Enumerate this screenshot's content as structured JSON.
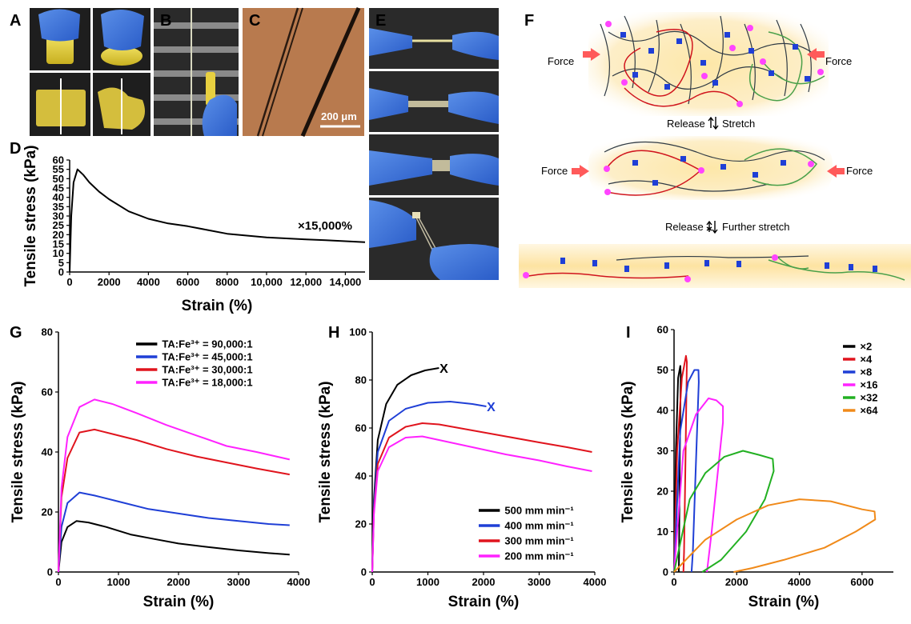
{
  "panel_letters": {
    "A": "A",
    "B": "B",
    "C": "C",
    "D": "D",
    "E": "E",
    "F": "F",
    "G": "G",
    "H": "H",
    "I": "I"
  },
  "photos": {
    "scale_bar": "200 μm"
  },
  "schematic": {
    "force": "Force",
    "release_stretch": "Release",
    "stretch": "Stretch",
    "release2": "Release",
    "further_stretch": "Further stretch",
    "colors": {
      "red_chain": "#d0141d",
      "green_chain": "#4aa04a",
      "gray_chain": "#2f3a44",
      "crosslink": "#1f3fd6",
      "node": "#ff55ff",
      "glow": "#fde8b0"
    }
  },
  "chart_data": [
    {
      "id": "D",
      "type": "line",
      "xlabel": "Strain (%)",
      "ylabel": "Tensile stress (kPa)",
      "xlim": [
        0,
        15000
      ],
      "ylim": [
        0,
        60
      ],
      "xticks": [
        0,
        2000,
        4000,
        6000,
        8000,
        10000,
        12000,
        14000
      ],
      "xtick_labels": [
        "0",
        "2000",
        "4000",
        "6000",
        "8000",
        "10,000",
        "12,000",
        "14,000"
      ],
      "yticks": [
        0,
        5,
        10,
        15,
        20,
        25,
        30,
        35,
        40,
        45,
        50,
        55,
        60
      ],
      "annotation": "×15,000%",
      "series": [
        {
          "color": "#000000",
          "points": [
            [
              0,
              0
            ],
            [
              80,
              30
            ],
            [
              200,
              48
            ],
            [
              400,
              55
            ],
            [
              700,
              52
            ],
            [
              1000,
              48
            ],
            [
              1500,
              43
            ],
            [
              2000,
              39
            ],
            [
              3000,
              32.5
            ],
            [
              4000,
              28.5
            ],
            [
              5000,
              26
            ],
            [
              6000,
              24.5
            ],
            [
              7000,
              22.5
            ],
            [
              8000,
              20.5
            ],
            [
              9000,
              19.5
            ],
            [
              10000,
              18.5
            ],
            [
              11000,
              18
            ],
            [
              12000,
              17.5
            ],
            [
              13000,
              17
            ],
            [
              14000,
              16.5
            ],
            [
              15000,
              16
            ]
          ]
        }
      ]
    },
    {
      "id": "G",
      "type": "line",
      "xlabel": "Strain (%)",
      "ylabel": "Tensile stress (kPa)",
      "xlim": [
        0,
        4000
      ],
      "ylim": [
        0,
        80
      ],
      "xticks": [
        0,
        1000,
        2000,
        3000,
        4000
      ],
      "yticks": [
        0,
        20,
        40,
        60,
        80
      ],
      "legend_position": "top-right",
      "series": [
        {
          "name": "TA:Fe³⁺ = 90,000:1",
          "color": "#000000",
          "points": [
            [
              0,
              0
            ],
            [
              50,
              10
            ],
            [
              150,
              15
            ],
            [
              300,
              17
            ],
            [
              500,
              16.5
            ],
            [
              800,
              15
            ],
            [
              1200,
              12.5
            ],
            [
              1600,
              11
            ],
            [
              2000,
              9.5
            ],
            [
              2500,
              8.3
            ],
            [
              3000,
              7.2
            ],
            [
              3500,
              6.3
            ],
            [
              3850,
              5.8
            ]
          ]
        },
        {
          "name": "TA:Fe³⁺ = 45,000:1",
          "color": "#1f3fd6",
          "points": [
            [
              0,
              0
            ],
            [
              50,
              15
            ],
            [
              150,
              23
            ],
            [
              350,
              26.5
            ],
            [
              600,
              25.5
            ],
            [
              1000,
              23.5
            ],
            [
              1500,
              21
            ],
            [
              2000,
              19.5
            ],
            [
              2500,
              18
            ],
            [
              3000,
              17
            ],
            [
              3500,
              16
            ],
            [
              3850,
              15.6
            ]
          ]
        },
        {
          "name": "TA:Fe³⁺ = 30,000:1",
          "color": "#e0141d",
          "points": [
            [
              0,
              0
            ],
            [
              50,
              25
            ],
            [
              150,
              38
            ],
            [
              350,
              46.5
            ],
            [
              600,
              47.5
            ],
            [
              900,
              46
            ],
            [
              1300,
              44
            ],
            [
              1800,
              41
            ],
            [
              2300,
              38.5
            ],
            [
              2800,
              36.5
            ],
            [
              3300,
              34.5
            ],
            [
              3850,
              32.5
            ]
          ]
        },
        {
          "name": "TA:Fe³⁺ = 18,000:1",
          "color": "#ff22ff",
          "points": [
            [
              0,
              0
            ],
            [
              50,
              28
            ],
            [
              150,
              45
            ],
            [
              350,
              55
            ],
            [
              600,
              57.5
            ],
            [
              900,
              56
            ],
            [
              1300,
              53
            ],
            [
              1800,
              49
            ],
            [
              2300,
              45.5
            ],
            [
              2800,
              42
            ],
            [
              3300,
              40
            ],
            [
              3850,
              37.5
            ]
          ]
        }
      ]
    },
    {
      "id": "H",
      "type": "line",
      "xlabel": "Strain (%)",
      "ylabel": "Tensile stress (kPa)",
      "xlim": [
        0,
        4000
      ],
      "ylim": [
        0,
        100
      ],
      "xticks": [
        0,
        1000,
        2000,
        3000,
        4000
      ],
      "yticks": [
        0,
        20,
        40,
        60,
        80,
        100
      ],
      "legend_position": "bottom-right",
      "break_marker": "X",
      "series": [
        {
          "name": "500 mm min⁻¹",
          "color": "#000000",
          "break": true,
          "points": [
            [
              0,
              0
            ],
            [
              30,
              30
            ],
            [
              100,
              55
            ],
            [
              250,
              70
            ],
            [
              450,
              78
            ],
            [
              700,
              82
            ],
            [
              950,
              84
            ],
            [
              1200,
              85
            ]
          ]
        },
        {
          "name": "400 mm min⁻¹",
          "color": "#1f3fd6",
          "break": true,
          "points": [
            [
              0,
              0
            ],
            [
              30,
              28
            ],
            [
              100,
              50
            ],
            [
              300,
              63
            ],
            [
              600,
              68
            ],
            [
              1000,
              70.5
            ],
            [
              1400,
              71
            ],
            [
              1800,
              70
            ],
            [
              2050,
              69
            ]
          ]
        },
        {
          "name": "300 mm min⁻¹",
          "color": "#e0141d",
          "break": false,
          "points": [
            [
              0,
              0
            ],
            [
              30,
              25
            ],
            [
              100,
              45
            ],
            [
              300,
              56
            ],
            [
              600,
              60.5
            ],
            [
              900,
              62
            ],
            [
              1200,
              61.5
            ],
            [
              1800,
              59
            ],
            [
              2400,
              56.5
            ],
            [
              3000,
              54
            ],
            [
              3500,
              52
            ],
            [
              3950,
              50
            ]
          ]
        },
        {
          "name": "200 mm min⁻¹",
          "color": "#ff22ff",
          "break": false,
          "points": [
            [
              0,
              0
            ],
            [
              30,
              24
            ],
            [
              100,
              42
            ],
            [
              300,
              52
            ],
            [
              600,
              56
            ],
            [
              900,
              56.5
            ],
            [
              1200,
              55
            ],
            [
              1800,
              52
            ],
            [
              2400,
              49
            ],
            [
              3000,
              46.5
            ],
            [
              3500,
              44
            ],
            [
              3950,
              42
            ]
          ]
        }
      ]
    },
    {
      "id": "I",
      "type": "line",
      "xlabel": "Strain (%)",
      "ylabel": "Tensile stress (kPa)",
      "xlim": [
        0,
        7000
      ],
      "ylim": [
        0,
        60
      ],
      "xticks": [
        0,
        2000,
        4000,
        6000
      ],
      "yticks": [
        0,
        10,
        20,
        30,
        40,
        50,
        60
      ],
      "legend_position": "top-right",
      "series": [
        {
          "name": "×2",
          "color": "#000000",
          "points": [
            [
              0,
              0
            ],
            [
              60,
              30
            ],
            [
              130,
              48
            ],
            [
              200,
              51
            ],
            [
              215,
              49
            ],
            [
              180,
              25
            ],
            [
              160,
              5
            ],
            [
              150,
              0
            ]
          ]
        },
        {
          "name": "×4",
          "color": "#e0141d",
          "points": [
            [
              0,
              0
            ],
            [
              100,
              30
            ],
            [
              250,
              48
            ],
            [
              380,
              53.5
            ],
            [
              410,
              52
            ],
            [
              360,
              25
            ],
            [
              320,
              5
            ],
            [
              300,
              0
            ]
          ]
        },
        {
          "name": "×8",
          "color": "#1f3fd6",
          "points": [
            [
              0,
              0
            ],
            [
              200,
              35
            ],
            [
              450,
              47
            ],
            [
              650,
              50
            ],
            [
              780,
              50
            ],
            [
              790,
              47
            ],
            [
              690,
              25
            ],
            [
              600,
              5
            ],
            [
              560,
              0
            ]
          ]
        },
        {
          "name": "×16",
          "color": "#ff22ff",
          "points": [
            [
              0,
              0
            ],
            [
              300,
              30
            ],
            [
              700,
              39
            ],
            [
              1100,
              43
            ],
            [
              1350,
              42.5
            ],
            [
              1560,
              41
            ],
            [
              1560,
              37
            ],
            [
              1400,
              25
            ],
            [
              1200,
              10
            ],
            [
              1050,
              0
            ]
          ]
        },
        {
          "name": "×32",
          "color": "#22b022",
          "points": [
            [
              0,
              0
            ],
            [
              500,
              18
            ],
            [
              1000,
              24.5
            ],
            [
              1600,
              28.5
            ],
            [
              2200,
              30
            ],
            [
              2700,
              29
            ],
            [
              3150,
              28
            ],
            [
              3180,
              25
            ],
            [
              2900,
              18
            ],
            [
              2300,
              10
            ],
            [
              1500,
              3
            ],
            [
              900,
              0
            ]
          ]
        },
        {
          "name": "×64",
          "color": "#f08a1a",
          "points": [
            [
              0,
              0
            ],
            [
              1000,
              8
            ],
            [
              2000,
              13
            ],
            [
              3000,
              16.5
            ],
            [
              4000,
              18
            ],
            [
              5000,
              17.5
            ],
            [
              6000,
              15.5
            ],
            [
              6400,
              15
            ],
            [
              6420,
              13
            ],
            [
              5800,
              10
            ],
            [
              4800,
              6
            ],
            [
              3500,
              3
            ],
            [
              2500,
              1
            ],
            [
              1900,
              0
            ]
          ]
        }
      ]
    }
  ]
}
